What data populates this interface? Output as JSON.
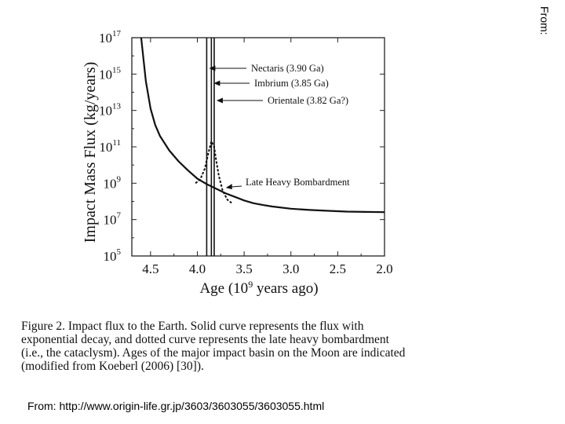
{
  "slide": {
    "corner_label": "From:",
    "source": "From: http://www.origin-life.gr.jp/3603/3603055/3603055.html"
  },
  "caption": {
    "lines": [
      "Figure 2. Impact flux to the Earth. Solid curve represents the flux with",
      "exponential decay, and dotted curve represents the late heavy bombardment",
      "(i.e., the cataclysm). Ages of the major impact basin on the Moon are indicated",
      "(modified from Koeberl (2006) [30])."
    ]
  },
  "chart_data": {
    "type": "line",
    "ylabel": "Impact Mass Flux (kg/years)",
    "xlabel": "Age (10^9 years ago)",
    "y_scale": "log",
    "ylim_exp": [
      5,
      17
    ],
    "xlim": [
      4.7,
      2.0
    ],
    "x_ticks": [
      "4.5",
      "4.0",
      "3.5",
      "3.0",
      "2.5",
      "2.0"
    ],
    "y_tick_exponents": [
      "5",
      "7",
      "9",
      "11",
      "13",
      "15",
      "17"
    ],
    "series": [
      {
        "name": "exponential decay",
        "style": "solid",
        "x": [
          4.6,
          4.55,
          4.5,
          4.45,
          4.4,
          4.3,
          4.2,
          4.1,
          4.0,
          3.9,
          3.8,
          3.7,
          3.6,
          3.5,
          3.4,
          3.3,
          3.2,
          3.0,
          2.8,
          2.6,
          2.4,
          2.2,
          2.0
        ],
        "log10_y": [
          17.2,
          14.6,
          13.1,
          12.2,
          11.6,
          10.8,
          10.2,
          9.7,
          9.25,
          8.95,
          8.7,
          8.45,
          8.25,
          8.05,
          7.9,
          7.8,
          7.72,
          7.6,
          7.53,
          7.48,
          7.44,
          7.42,
          7.41
        ]
      },
      {
        "name": "late heavy bombardment",
        "style": "dotted",
        "x": [
          4.02,
          3.97,
          3.92,
          3.88,
          3.85,
          3.82,
          3.8,
          3.77,
          3.73,
          3.68,
          3.63
        ],
        "log10_y": [
          9.0,
          9.2,
          9.8,
          10.7,
          11.3,
          11.0,
          10.3,
          9.4,
          8.6,
          8.1,
          7.9
        ]
      }
    ],
    "basin_lines": [
      {
        "x": 3.9,
        "label": "Nectaris (3.90 Ga)"
      },
      {
        "x": 3.85,
        "label": "Imbrium (3.85 Ga)"
      },
      {
        "x": 3.82,
        "label": "Orientale (3.82 Ga?)"
      }
    ],
    "annotation": {
      "label": "Late Heavy Bombardment",
      "x": 3.62,
      "log10_y": 9.0
    }
  }
}
